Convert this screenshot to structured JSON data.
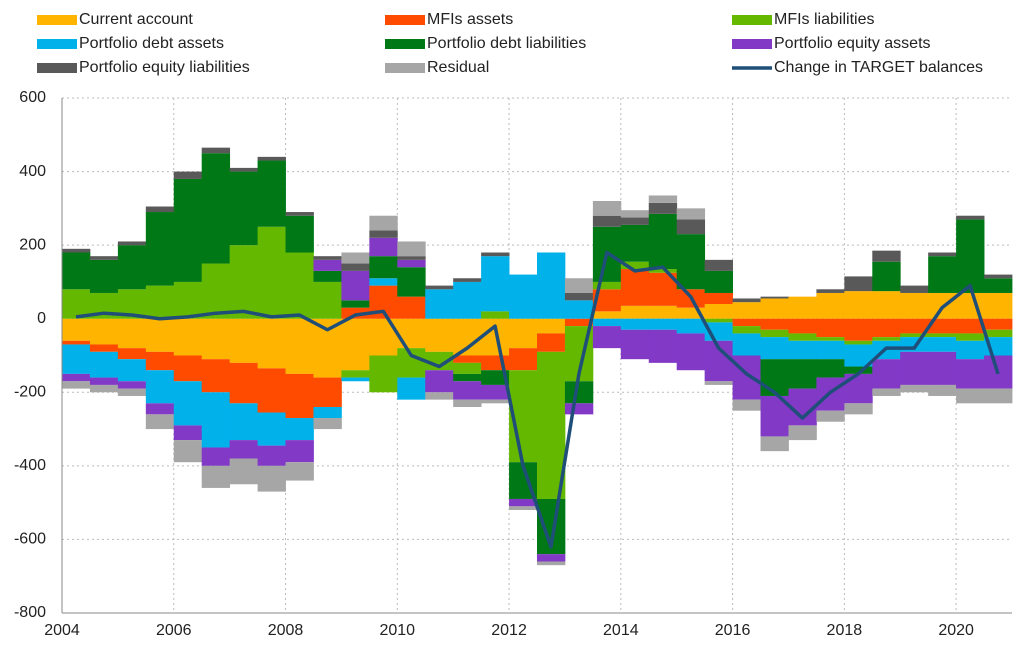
{
  "chart_data": {
    "type": "stacked_bar_line",
    "x": [
      2004,
      2004.5,
      2005,
      2005.5,
      2006,
      2006.5,
      2007,
      2007.5,
      2008,
      2008.5,
      2009,
      2009.5,
      2010,
      2010.5,
      2011,
      2011.5,
      2012,
      2012.5,
      2013,
      2013.5,
      2014,
      2014.5,
      2015,
      2015.5,
      2016,
      2016.5,
      2017,
      2017.5,
      2018,
      2018.5,
      2019,
      2019.5,
      2020,
      2020.5
    ],
    "series": [
      {
        "name": "Current account",
        "color": "#ffb400",
        "values": [
          -60,
          -70,
          -80,
          -90,
          -100,
          -110,
          -120,
          -135,
          -150,
          -160,
          -140,
          -100,
          -80,
          -90,
          -100,
          -100,
          -80,
          -40,
          0,
          20,
          35,
          35,
          30,
          40,
          45,
          55,
          60,
          70,
          75,
          75,
          70,
          70,
          70,
          70
        ]
      },
      {
        "name": "MFIs assets",
        "color": "#ff4b00",
        "values": [
          -10,
          -20,
          -30,
          -50,
          -70,
          -90,
          -110,
          -120,
          -120,
          -80,
          30,
          90,
          60,
          0,
          -20,
          -40,
          -60,
          -50,
          -20,
          60,
          100,
          90,
          50,
          30,
          -20,
          -30,
          -40,
          -50,
          -60,
          -50,
          -40,
          -40,
          -40,
          -30
        ]
      },
      {
        "name": "MFIs liabilities",
        "color": "#65b800",
        "values": [
          80,
          70,
          80,
          90,
          100,
          150,
          200,
          250,
          180,
          100,
          -20,
          -100,
          -80,
          -50,
          -30,
          20,
          -250,
          -400,
          -150,
          20,
          20,
          10,
          0,
          -10,
          -20,
          -20,
          -20,
          -10,
          -10,
          -10,
          -10,
          -10,
          -20,
          -20
        ]
      },
      {
        "name": "Portfolio debt assets",
        "color": "#00b1ea",
        "values": [
          -80,
          -70,
          -60,
          -90,
          -120,
          -150,
          -100,
          -90,
          -60,
          -30,
          -10,
          20,
          -60,
          80,
          100,
          150,
          120,
          180,
          50,
          -20,
          -30,
          -30,
          -40,
          -50,
          -60,
          -60,
          -50,
          -50,
          -60,
          -50,
          -40,
          -40,
          -50,
          -50
        ]
      },
      {
        "name": "Portfolio debt liabilities",
        "color": "#007816",
        "values": [
          100,
          90,
          120,
          200,
          280,
          300,
          200,
          180,
          100,
          30,
          20,
          60,
          80,
          0,
          -20,
          -40,
          -100,
          -150,
          -60,
          150,
          100,
          150,
          150,
          60,
          0,
          -100,
          -80,
          -50,
          -20,
          80,
          0,
          100,
          200,
          40
        ]
      },
      {
        "name": "Portfolio equity assets",
        "color": "#8139c6",
        "values": [
          -20,
          -20,
          -20,
          -30,
          -40,
          -50,
          -50,
          -55,
          -60,
          30,
          80,
          50,
          20,
          -60,
          -50,
          -40,
          -20,
          -20,
          -30,
          -60,
          -80,
          -90,
          -100,
          -110,
          -120,
          -110,
          -100,
          -90,
          -80,
          -80,
          -90,
          -90,
          -80,
          -90
        ]
      },
      {
        "name": "Portfolio equity liabilities",
        "color": "#595959",
        "values": [
          10,
          10,
          10,
          15,
          20,
          15,
          10,
          10,
          10,
          10,
          20,
          20,
          10,
          10,
          10,
          10,
          0,
          0,
          20,
          30,
          20,
          30,
          40,
          30,
          10,
          5,
          0,
          10,
          40,
          30,
          20,
          10,
          10,
          10
        ]
      },
      {
        "name": "Residual",
        "color": "#a6a6a6",
        "values": [
          -20,
          -20,
          -20,
          -40,
          -60,
          -60,
          -70,
          -70,
          -50,
          -30,
          30,
          40,
          40,
          -20,
          -20,
          -10,
          -10,
          -10,
          40,
          40,
          20,
          20,
          30,
          -10,
          -30,
          -40,
          -40,
          -30,
          -30,
          -20,
          -20,
          -30,
          -40,
          -40
        ]
      }
    ],
    "line_series": {
      "name": "Change in TARGET balances",
      "color": "#1f4e79",
      "values": [
        5,
        15,
        10,
        0,
        5,
        15,
        20,
        5,
        10,
        -30,
        10,
        20,
        -100,
        -130,
        -80,
        -20,
        -400,
        -620,
        -150,
        180,
        130,
        140,
        60,
        -80,
        -150,
        -200,
        -270,
        -200,
        -150,
        -80,
        -80,
        30,
        90,
        -150
      ]
    },
    "xlim": [
      2004,
      2021
    ],
    "xticks": [
      2004,
      2006,
      2008,
      2010,
      2012,
      2014,
      2016,
      2018,
      2020
    ],
    "ylim": [
      -800,
      600
    ],
    "yticks": [
      -800,
      -600,
      -400,
      -200,
      0,
      200,
      400,
      600
    ],
    "grid": true
  }
}
